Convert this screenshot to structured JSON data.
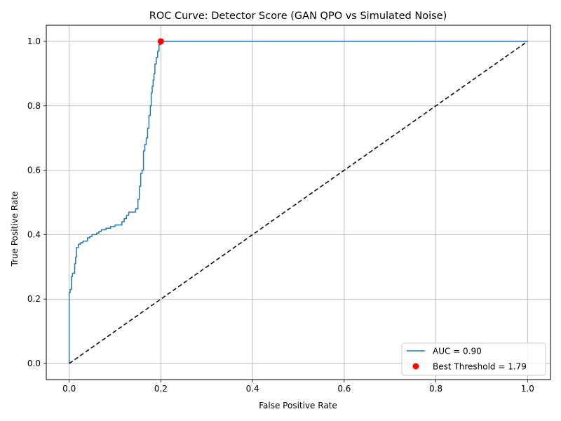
{
  "chart_data": {
    "type": "line",
    "title": "ROC Curve: Detector Score (GAN QPO vs Simulated Noise)",
    "xlabel": "False Positive Rate",
    "ylabel": "True Positive Rate",
    "xlim": [
      -0.05,
      1.05
    ],
    "ylim": [
      -0.05,
      1.05
    ],
    "x_ticks": [
      0.0,
      0.2,
      0.4,
      0.6,
      0.8,
      1.0
    ],
    "y_ticks": [
      0.0,
      0.2,
      0.4,
      0.6,
      0.8,
      1.0
    ],
    "x_tick_labels": [
      "0.0",
      "0.2",
      "0.4",
      "0.6",
      "0.8",
      "1.0"
    ],
    "y_tick_labels": [
      "0.0",
      "0.2",
      "0.4",
      "0.6",
      "0.8",
      "1.0"
    ],
    "grid": true,
    "legend_position": "lower-right",
    "series": [
      {
        "name": "AUC = 0.90",
        "kind": "step-line",
        "color": "#1f77b4",
        "points": [
          [
            0.0,
            0.0
          ],
          [
            0.0,
            0.22
          ],
          [
            0.002,
            0.22
          ],
          [
            0.002,
            0.23
          ],
          [
            0.005,
            0.23
          ],
          [
            0.005,
            0.27
          ],
          [
            0.007,
            0.27
          ],
          [
            0.007,
            0.28
          ],
          [
            0.012,
            0.28
          ],
          [
            0.012,
            0.31
          ],
          [
            0.014,
            0.31
          ],
          [
            0.014,
            0.33
          ],
          [
            0.016,
            0.33
          ],
          [
            0.016,
            0.36
          ],
          [
            0.02,
            0.36
          ],
          [
            0.02,
            0.37
          ],
          [
            0.025,
            0.37
          ],
          [
            0.025,
            0.375
          ],
          [
            0.03,
            0.375
          ],
          [
            0.03,
            0.38
          ],
          [
            0.04,
            0.38
          ],
          [
            0.04,
            0.39
          ],
          [
            0.045,
            0.39
          ],
          [
            0.045,
            0.395
          ],
          [
            0.05,
            0.395
          ],
          [
            0.05,
            0.4
          ],
          [
            0.06,
            0.4
          ],
          [
            0.06,
            0.405
          ],
          [
            0.065,
            0.405
          ],
          [
            0.065,
            0.41
          ],
          [
            0.07,
            0.41
          ],
          [
            0.07,
            0.415
          ],
          [
            0.08,
            0.415
          ],
          [
            0.08,
            0.42
          ],
          [
            0.09,
            0.42
          ],
          [
            0.09,
            0.425
          ],
          [
            0.1,
            0.425
          ],
          [
            0.1,
            0.43
          ],
          [
            0.115,
            0.43
          ],
          [
            0.115,
            0.44
          ],
          [
            0.12,
            0.44
          ],
          [
            0.12,
            0.45
          ],
          [
            0.125,
            0.45
          ],
          [
            0.125,
            0.46
          ],
          [
            0.13,
            0.46
          ],
          [
            0.13,
            0.47
          ],
          [
            0.145,
            0.47
          ],
          [
            0.145,
            0.48
          ],
          [
            0.15,
            0.48
          ],
          [
            0.15,
            0.51
          ],
          [
            0.153,
            0.51
          ],
          [
            0.153,
            0.55
          ],
          [
            0.156,
            0.55
          ],
          [
            0.156,
            0.59
          ],
          [
            0.159,
            0.59
          ],
          [
            0.159,
            0.6
          ],
          [
            0.162,
            0.6
          ],
          [
            0.162,
            0.66
          ],
          [
            0.165,
            0.66
          ],
          [
            0.165,
            0.68
          ],
          [
            0.168,
            0.68
          ],
          [
            0.168,
            0.7
          ],
          [
            0.171,
            0.7
          ],
          [
            0.171,
            0.73
          ],
          [
            0.174,
            0.73
          ],
          [
            0.174,
            0.77
          ],
          [
            0.177,
            0.77
          ],
          [
            0.177,
            0.8
          ],
          [
            0.179,
            0.8
          ],
          [
            0.179,
            0.84
          ],
          [
            0.181,
            0.84
          ],
          [
            0.181,
            0.86
          ],
          [
            0.183,
            0.86
          ],
          [
            0.183,
            0.88
          ],
          [
            0.185,
            0.88
          ],
          [
            0.185,
            0.9
          ],
          [
            0.187,
            0.9
          ],
          [
            0.187,
            0.93
          ],
          [
            0.19,
            0.93
          ],
          [
            0.19,
            0.95
          ],
          [
            0.193,
            0.95
          ],
          [
            0.193,
            0.97
          ],
          [
            0.196,
            0.97
          ],
          [
            0.196,
            0.99
          ],
          [
            0.2,
            0.99
          ],
          [
            0.2,
            1.0
          ],
          [
            1.0,
            1.0
          ]
        ]
      },
      {
        "name": "",
        "kind": "dashed-line",
        "color": "#000000",
        "points": [
          [
            0.0,
            0.0
          ],
          [
            1.0,
            1.0
          ]
        ]
      },
      {
        "name": "Best Threshold = 1.79",
        "kind": "scatter",
        "color": "#ff0000",
        "points": [
          [
            0.2,
            1.0
          ]
        ]
      }
    ]
  }
}
